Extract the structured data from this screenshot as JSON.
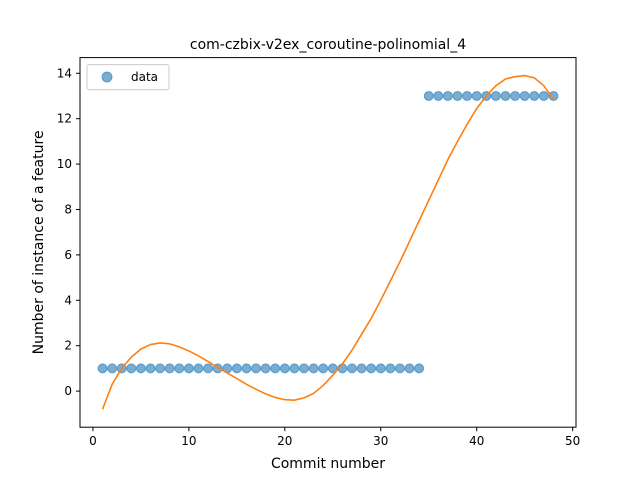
{
  "chart_data": {
    "type": "scatter",
    "title": "com-czbix-v2ex_coroutine-polinomial_4",
    "xlabel": "Commit number",
    "ylabel": "Number of instance of a feature",
    "xlim": [
      -1.35,
      50.35
    ],
    "ylim": [
      -1.59,
      14.69
    ],
    "xticks": [
      0,
      10,
      20,
      30,
      40,
      50
    ],
    "yticks": [
      0,
      2,
      4,
      6,
      8,
      10,
      12,
      14
    ],
    "legend": {
      "position": "top-left",
      "entries": [
        "data"
      ]
    },
    "grid": false,
    "colors": {
      "points": "#1f77b4",
      "fit": "#ff7f0e"
    },
    "series": [
      {
        "name": "data",
        "kind": "scatter",
        "x": [
          1,
          2,
          3,
          4,
          5,
          6,
          7,
          8,
          9,
          10,
          11,
          12,
          13,
          14,
          15,
          16,
          17,
          18,
          19,
          20,
          21,
          22,
          23,
          24,
          25,
          26,
          27,
          28,
          29,
          30,
          31,
          32,
          33,
          34,
          35,
          36,
          37,
          38,
          39,
          40,
          41,
          42,
          43,
          44,
          45,
          46,
          47,
          48
        ],
        "y": [
          1,
          1,
          1,
          1,
          1,
          1,
          1,
          1,
          1,
          1,
          1,
          1,
          1,
          1,
          1,
          1,
          1,
          1,
          1,
          1,
          1,
          1,
          1,
          1,
          1,
          1,
          1,
          1,
          1,
          1,
          1,
          1,
          1,
          1,
          13,
          13,
          13,
          13,
          13,
          13,
          13,
          13,
          13,
          13,
          13,
          13,
          13,
          13
        ]
      },
      {
        "kind": "line",
        "x": [
          1,
          2,
          3,
          4,
          5,
          6,
          7,
          8,
          9,
          10,
          11,
          12,
          13,
          14,
          15,
          16,
          17,
          18,
          19,
          20,
          21,
          22,
          23,
          24,
          25,
          26,
          27,
          28,
          29,
          30,
          31,
          32,
          33,
          34,
          35,
          36,
          37,
          38,
          39,
          40,
          41,
          42,
          43,
          44,
          45,
          46,
          47,
          48
        ],
        "y": [
          -0.8,
          0.3,
          1.0,
          1.5,
          1.85,
          2.05,
          2.12,
          2.08,
          1.95,
          1.77,
          1.55,
          1.3,
          1.05,
          0.8,
          0.55,
          0.3,
          0.08,
          -0.12,
          -0.28,
          -0.38,
          -0.4,
          -0.3,
          -0.1,
          0.25,
          0.7,
          1.2,
          1.8,
          2.5,
          3.2,
          4.0,
          4.85,
          5.7,
          6.6,
          7.5,
          8.4,
          9.3,
          10.2,
          11.0,
          11.75,
          12.45,
          13.0,
          13.45,
          13.75,
          13.85,
          13.9,
          13.8,
          13.45,
          12.85
        ]
      }
    ]
  }
}
